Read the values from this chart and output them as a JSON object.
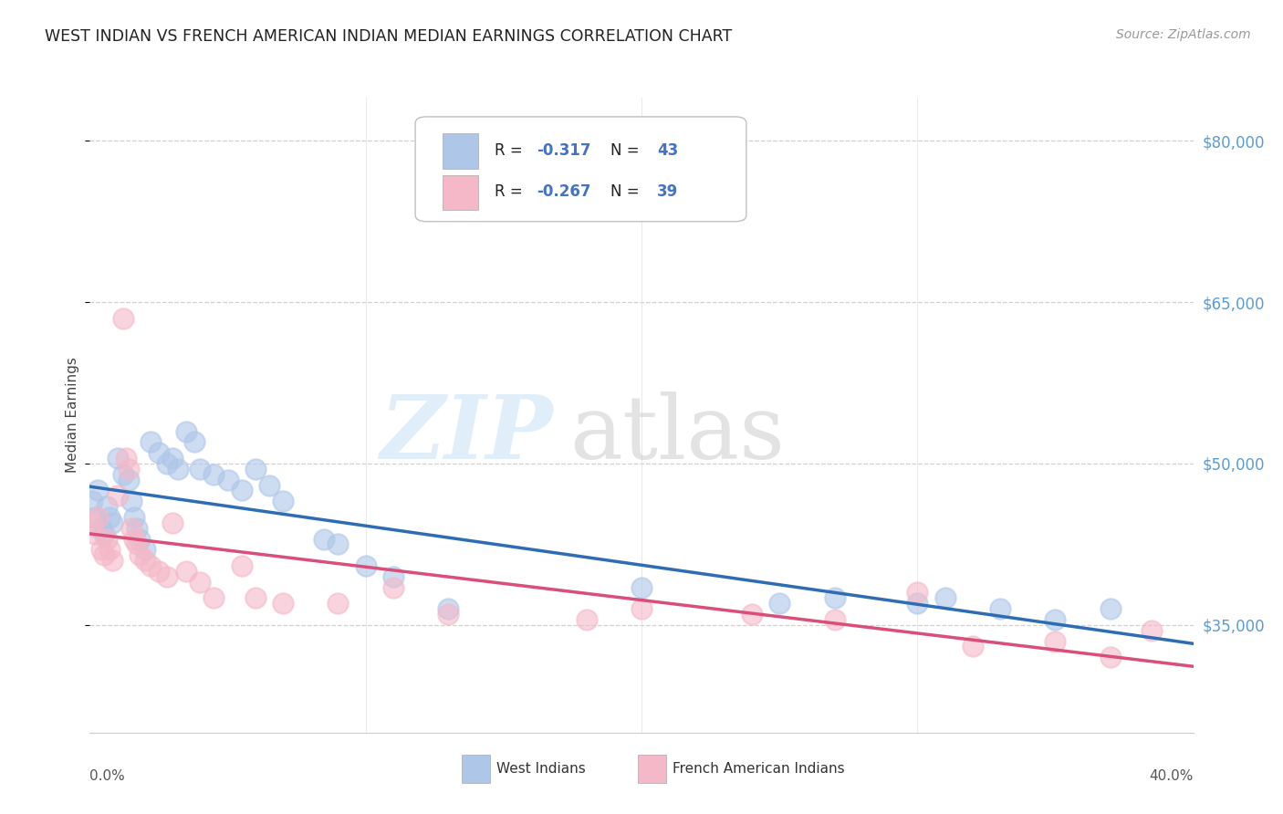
{
  "title": "WEST INDIAN VS FRENCH AMERICAN INDIAN MEDIAN EARNINGS CORRELATION CHART",
  "source": "Source: ZipAtlas.com",
  "ylabel": "Median Earnings",
  "y_ticks": [
    35000,
    50000,
    65000,
    80000
  ],
  "y_tick_labels": [
    "$35,000",
    "$50,000",
    "$65,000",
    "$80,000"
  ],
  "y_right_color": "#5b9bd5",
  "legend_r_blue": "R = ",
  "legend_r_blue_val": "-0.317",
  "legend_n_blue": "  N = ",
  "legend_n_blue_val": "43",
  "legend_r_pink": "R = ",
  "legend_r_pink_val": "-0.267",
  "legend_n_pink": "  N = ",
  "legend_n_pink_val": "39",
  "legend_bottom_blue": "West Indians",
  "legend_bottom_pink": "French American Indians",
  "blue_color": "#aec6e8",
  "pink_color": "#f4b8c8",
  "line_blue_color": "#2e6db4",
  "line_pink_color": "#d94f7a",
  "xlim": [
    0,
    0.4
  ],
  "ylim": [
    25000,
    84000
  ],
  "blue_scatter_x": [
    0.001,
    0.002,
    0.003,
    0.004,
    0.005,
    0.006,
    0.007,
    0.008,
    0.01,
    0.012,
    0.014,
    0.015,
    0.016,
    0.017,
    0.018,
    0.02,
    0.022,
    0.025,
    0.028,
    0.03,
    0.032,
    0.035,
    0.038,
    0.04,
    0.045,
    0.05,
    0.055,
    0.06,
    0.065,
    0.07,
    0.085,
    0.09,
    0.1,
    0.11,
    0.13,
    0.2,
    0.25,
    0.27,
    0.3,
    0.31,
    0.33,
    0.35,
    0.37
  ],
  "blue_scatter_y": [
    46500,
    45000,
    47500,
    44000,
    43500,
    46000,
    45000,
    44500,
    50500,
    49000,
    48500,
    46500,
    45000,
    44000,
    43000,
    42000,
    52000,
    51000,
    50000,
    50500,
    49500,
    53000,
    52000,
    49500,
    49000,
    48500,
    47500,
    49500,
    48000,
    46500,
    43000,
    42500,
    40500,
    39500,
    36500,
    38500,
    37000,
    37500,
    37000,
    37500,
    36500,
    35500,
    36500
  ],
  "pink_scatter_x": [
    0.001,
    0.002,
    0.003,
    0.004,
    0.005,
    0.006,
    0.007,
    0.008,
    0.01,
    0.012,
    0.013,
    0.014,
    0.015,
    0.016,
    0.017,
    0.018,
    0.02,
    0.022,
    0.025,
    0.028,
    0.03,
    0.035,
    0.04,
    0.045,
    0.055,
    0.06,
    0.07,
    0.09,
    0.11,
    0.13,
    0.18,
    0.2,
    0.24,
    0.27,
    0.3,
    0.32,
    0.35,
    0.37,
    0.385
  ],
  "pink_scatter_y": [
    44500,
    43500,
    45000,
    42000,
    41500,
    43000,
    42000,
    41000,
    47000,
    63500,
    50500,
    49500,
    44000,
    43000,
    42500,
    41500,
    41000,
    40500,
    40000,
    39500,
    44500,
    40000,
    39000,
    37500,
    40500,
    37500,
    37000,
    37000,
    38500,
    36000,
    35500,
    36500,
    36000,
    35500,
    38000,
    33000,
    33500,
    32000,
    34500
  ]
}
